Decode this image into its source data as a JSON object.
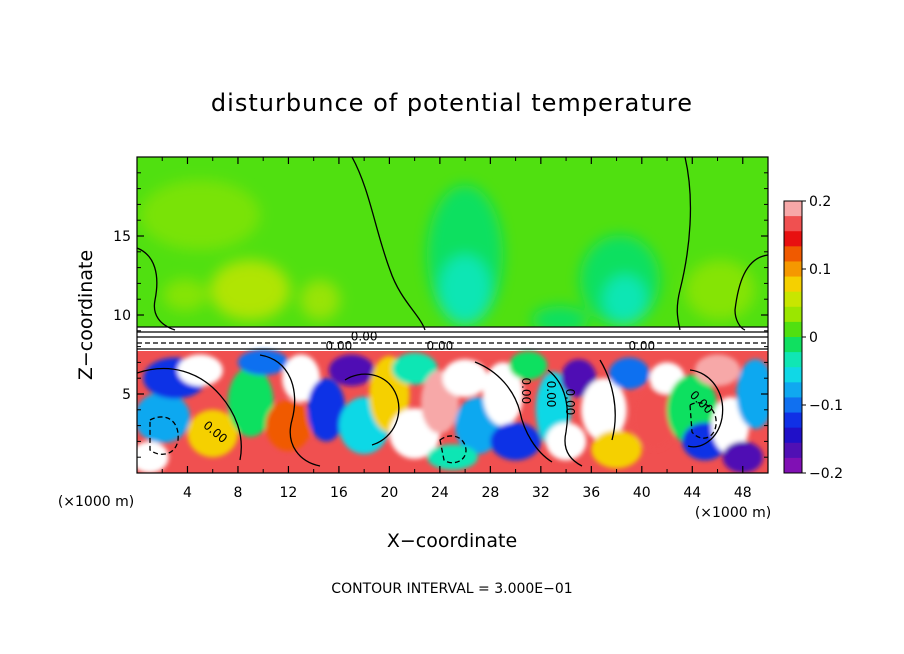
{
  "chart_data": {
    "type": "heatmap",
    "title": "disturbunce of potential temperature",
    "xlabel": "X−coordinate",
    "ylabel": "Z−coordinate",
    "x_unit_label": "(×1000 m)",
    "y_unit_label": "(×1000 m)",
    "xlim": [
      0,
      50
    ],
    "ylim": [
      0,
      20
    ],
    "x_ticks": [
      4,
      8,
      12,
      16,
      20,
      24,
      28,
      32,
      36,
      40,
      44,
      48
    ],
    "y_ticks": [
      5,
      10,
      15
    ],
    "footer": "CONTOUR INTERVAL = 3.000E−01",
    "colorbar": {
      "min": -0.2,
      "max": 0.2,
      "ticks": [
        "0.2",
        "0.1",
        "0",
        "−0.1",
        "−0.2"
      ],
      "colors": [
        "#f7a8a8",
        "#f05050",
        "#e81010",
        "#f05a00",
        "#f59800",
        "#f5d000",
        "#c8e600",
        "#9be600",
        "#50e010",
        "#10e060",
        "#10e6b4",
        "#10d8e6",
        "#10a8f0",
        "#1070f0",
        "#1030e6",
        "#2010c8",
        "#5010b4",
        "#8010b4"
      ]
    },
    "contour_labels": [
      "0.00",
      "0.00",
      "0.00",
      "0.00",
      "0.00",
      "0.00",
      "0.00",
      "0.00",
      "0.00"
    ],
    "upper_field_description": "weak positive anomaly (~0 to 0.05) above z≈9 km",
    "lower_field_description": "turbulent alternating anomalies (−0.2 to 0.2) below z≈8 km"
  }
}
